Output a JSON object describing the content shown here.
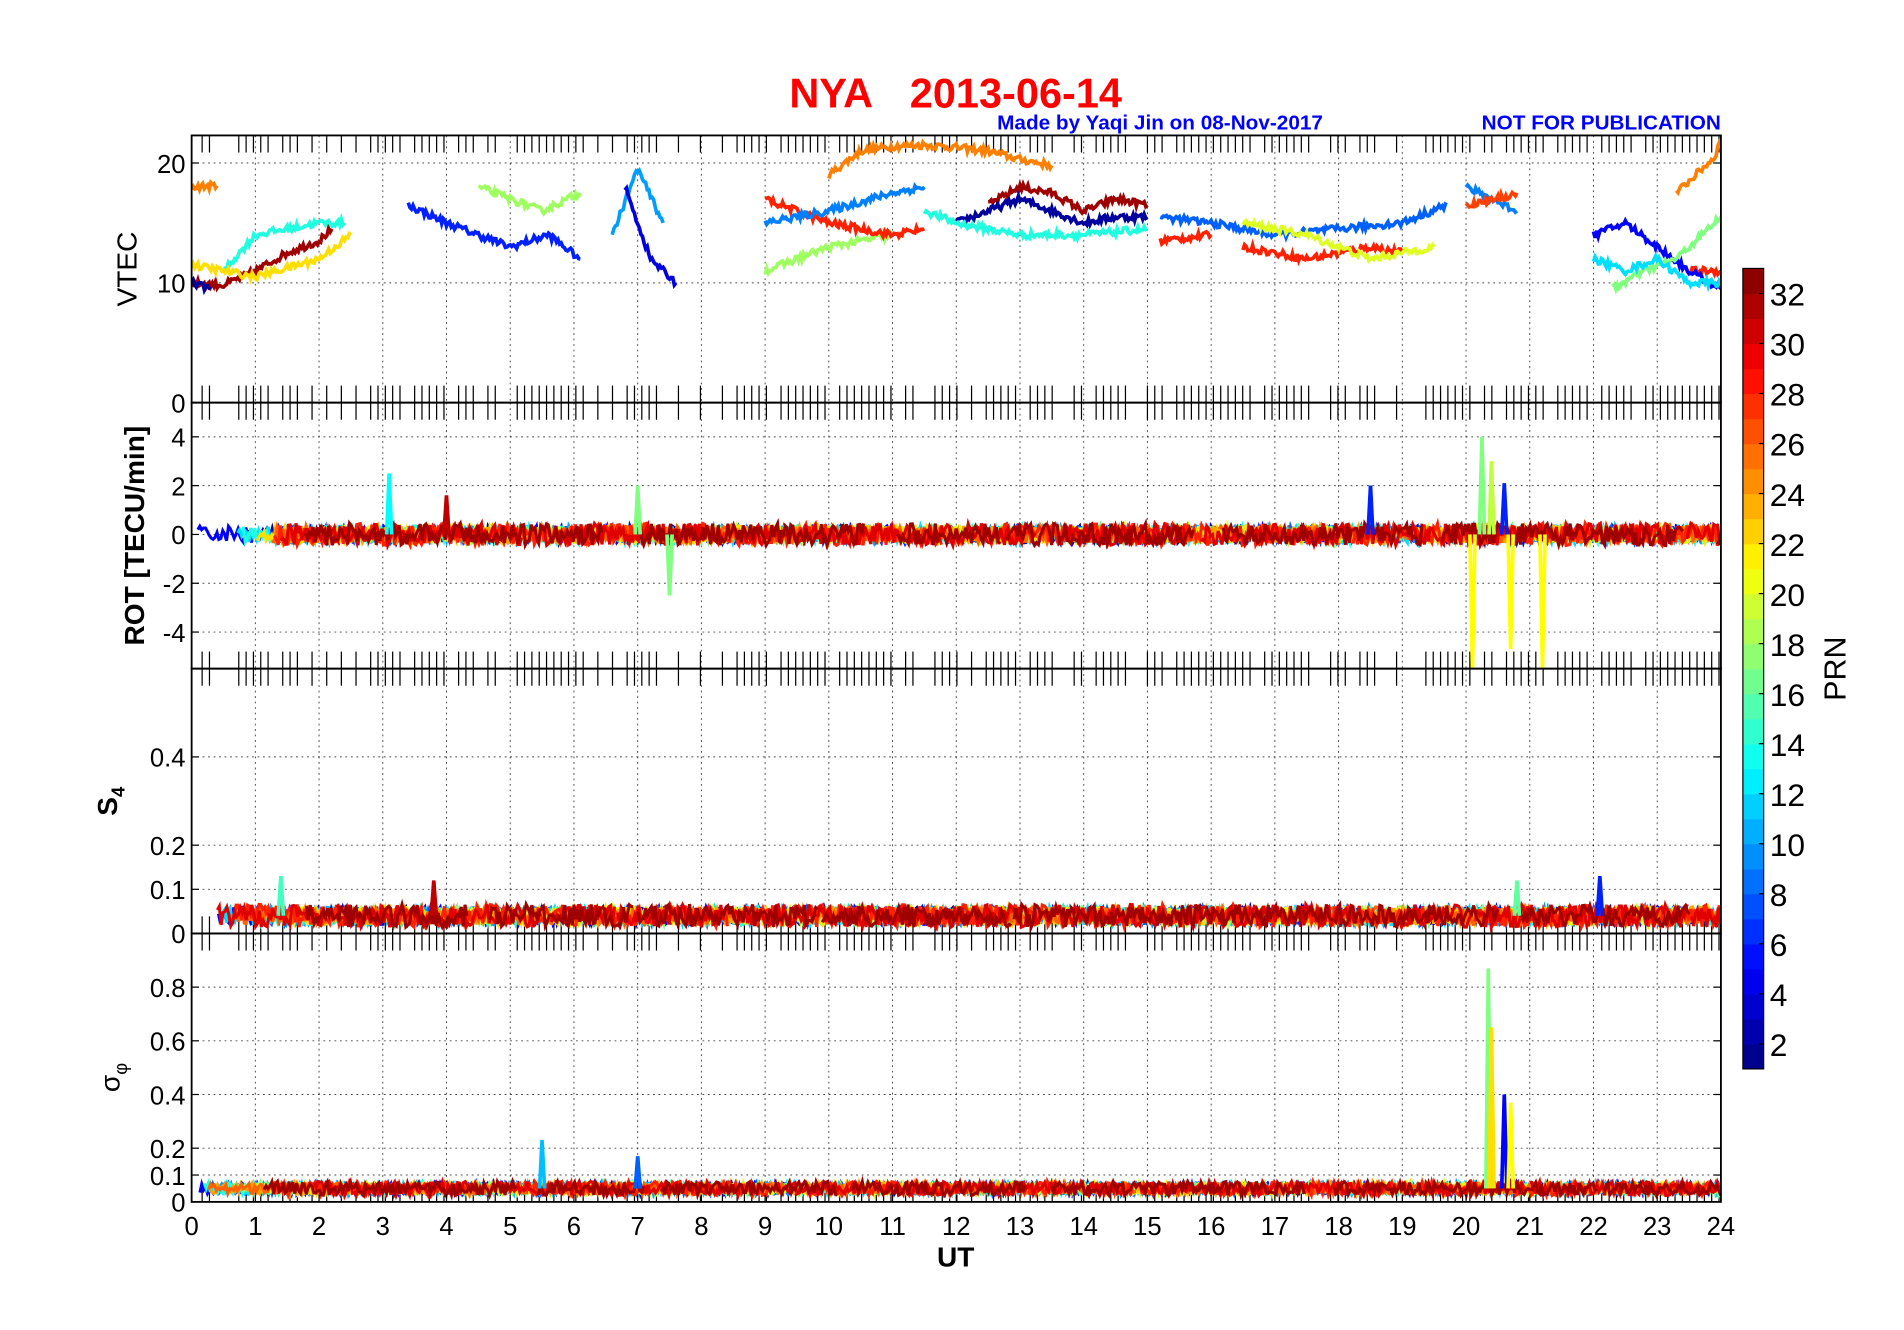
{
  "title": {
    "station": "NYA",
    "date": "2013-06-14"
  },
  "credit": "Made by Yaqi Jin on 08-Nov-2017",
  "notice": "NOT FOR PUBLICATION",
  "chart_data": {
    "type": "line",
    "xlabel": "UT",
    "xlim": [
      0,
      24
    ],
    "xticks": [
      0,
      1,
      2,
      3,
      4,
      5,
      6,
      7,
      8,
      9,
      10,
      11,
      12,
      13,
      14,
      15,
      16,
      17,
      18,
      19,
      20,
      21,
      22,
      23,
      24
    ],
    "grid": true,
    "colorbar": {
      "label": "PRN",
      "range": [
        1,
        33
      ],
      "ticks": [
        2,
        4,
        6,
        8,
        10,
        12,
        14,
        16,
        18,
        20,
        22,
        24,
        26,
        28,
        30,
        32
      ],
      "colormap": "jet",
      "placement": "right"
    },
    "panels": [
      {
        "id": "vtec",
        "ylabel": "VTEC",
        "ylim": [
          0,
          22.3
        ],
        "yticks": [
          0,
          10,
          20
        ],
        "tracks": [
          {
            "prn": 25,
            "t": [
              0,
              0.4
            ],
            "v": [
              18,
              18.1
            ]
          },
          {
            "prn": 25,
            "t": [
              10,
              10.5,
              11,
              11.5,
              12,
              12.5,
              13,
              13.5
            ],
            "v": [
              19,
              21,
              21.4,
              21.5,
              21.3,
              21,
              20.3,
              19.8
            ]
          },
          {
            "prn": 25,
            "t": [
              23.3,
              23.6,
              23.9,
              24
            ],
            "v": [
              17.5,
              19,
              20.5,
              22
            ]
          },
          {
            "prn": 32,
            "t": [
              0,
              0.5,
              1,
              1.5,
              2,
              2.2
            ],
            "v": [
              10,
              9.8,
              11,
              12.5,
              13.5,
              14.5
            ]
          },
          {
            "prn": 32,
            "t": [
              12.5,
              13,
              13.5,
              14,
              14.5,
              15
            ],
            "v": [
              16.5,
              18,
              17.5,
              16,
              17,
              16.5
            ]
          },
          {
            "prn": 2,
            "t": [
              0,
              0.3
            ],
            "v": [
              10,
              9.5
            ]
          },
          {
            "prn": 2,
            "t": [
              12,
              12.5,
              13,
              13.5,
              14,
              14.5,
              15
            ],
            "v": [
              15,
              16,
              17,
              16,
              15,
              15.5,
              15.5
            ]
          },
          {
            "prn": 6,
            "t": [
              3.4,
              4,
              5,
              5.6,
              6.1
            ],
            "v": [
              16.5,
              15,
              13,
              14,
              12
            ]
          },
          {
            "prn": 14,
            "t": [
              0.5,
              1,
              1.5,
              2,
              2.4
            ],
            "v": [
              11,
              14,
              14.5,
              15,
              15
            ]
          },
          {
            "prn": 14,
            "t": [
              11.5,
              12,
              13,
              14,
              15
            ],
            "v": [
              16,
              15,
              14,
              14,
              14.5
            ]
          },
          {
            "prn": 18,
            "t": [
              4.5,
              5,
              5.5,
              6.1
            ],
            "v": [
              18,
              17,
              16,
              17.5
            ]
          },
          {
            "prn": 18,
            "t": [
              9,
              10,
              11
            ],
            "v": [
              11,
              13,
              14
            ]
          },
          {
            "prn": 28,
            "t": [
              9,
              10,
              11,
              11.5
            ],
            "v": [
              17,
              15,
              14,
              14.5
            ]
          },
          {
            "prn": 28,
            "t": [
              15.2,
              16
            ],
            "v": [
              13.5,
              14
            ]
          },
          {
            "prn": 28,
            "t": [
              16.5,
              17.5,
              18.5,
              19
            ],
            "v": [
              13,
              12,
              13,
              12.5
            ]
          },
          {
            "prn": 28,
            "t": [
              23.5,
              24
            ],
            "v": [
              11,
              11
            ]
          },
          {
            "prn": 10,
            "t": [
              6.6,
              7,
              7.4
            ],
            "v": [
              14,
              19.5,
              15
            ]
          },
          {
            "prn": 4,
            "t": [
              6.8,
              7.2,
              7.6
            ],
            "v": [
              18,
              12,
              10
            ]
          },
          {
            "prn": 22,
            "t": [
              0,
              1,
              2,
              2.5
            ],
            "v": [
              11.5,
              10.5,
              12,
              14
            ]
          },
          {
            "prn": 9,
            "t": [
              9,
              10,
              11,
              11.5
            ],
            "v": [
              15,
              16,
              17.5,
              18
            ]
          },
          {
            "prn": 8,
            "t": [
              15.2,
              16,
              17,
              18,
              19,
              19.7
            ],
            "v": [
              15.5,
              15,
              14,
              14.5,
              15,
              16.5
            ]
          },
          {
            "prn": 20,
            "t": [
              16.5,
              17.5,
              18.5,
              19.5
            ],
            "v": [
              15,
              14,
              12,
              13
            ]
          },
          {
            "prn": 9,
            "t": [
              20,
              20.4,
              20.8
            ],
            "v": [
              18,
              17,
              16
            ]
          },
          {
            "prn": 27,
            "t": [
              20,
              20.5,
              20.8
            ],
            "v": [
              16.5,
              17,
              17.5
            ]
          },
          {
            "prn": 5,
            "t": [
              22,
              22.5,
              23,
              23.5,
              24
            ],
            "v": [
              14,
              15,
              13,
              11,
              9.5
            ]
          },
          {
            "prn": 17,
            "t": [
              22.3,
              22.8,
              23.3,
              24
            ],
            "v": [
              9.5,
              11,
              12,
              15.5
            ]
          },
          {
            "prn": 12,
            "t": [
              22,
              22.5,
              23,
              23.5,
              24
            ],
            "v": [
              12,
              11,
              12,
              10,
              10
            ]
          }
        ]
      },
      {
        "id": "rot",
        "ylabel": "ROT [TECU/min]",
        "ylim": [
          -5.5,
          5.4
        ],
        "yticks": [
          -4,
          -2,
          0,
          2,
          4
        ],
        "baseline": 0,
        "noise": 0.35,
        "spikes": [
          {
            "prn": 13,
            "t": 3.1,
            "v": 2.5
          },
          {
            "prn": 17,
            "t": 7.5,
            "v": -2.5
          },
          {
            "prn": 17,
            "t": 7.0,
            "v": 2.0
          },
          {
            "prn": 21,
            "t": 20.1,
            "v": -5.5
          },
          {
            "prn": 17,
            "t": 20.25,
            "v": 4.0
          },
          {
            "prn": 19,
            "t": 20.4,
            "v": 3.0
          },
          {
            "prn": 21,
            "t": 20.7,
            "v": -4.7
          },
          {
            "prn": 6,
            "t": 20.6,
            "v": 2.1
          },
          {
            "prn": 21,
            "t": 21.2,
            "v": -5.5
          },
          {
            "prn": 6,
            "t": 18.5,
            "v": 2.0
          },
          {
            "prn": 31,
            "t": 4.0,
            "v": 1.6
          }
        ]
      },
      {
        "id": "s4",
        "ylabel": "S4",
        "ylim": [
          0,
          0.6
        ],
        "yticks": [
          0,
          0.1,
          0.2,
          0.4
        ],
        "baseline": 0.04,
        "noise": 0.02,
        "spikes": [
          {
            "prn": 15,
            "t": 1.4,
            "v": 0.13
          },
          {
            "prn": 31,
            "t": 3.8,
            "v": 0.12
          },
          {
            "prn": 6,
            "t": 22.1,
            "v": 0.13
          },
          {
            "prn": 16,
            "t": 20.8,
            "v": 0.12
          }
        ]
      },
      {
        "id": "sigma-phi",
        "ylabel": "σφ",
        "ylim": [
          0,
          1.0
        ],
        "yticks": [
          0,
          0.1,
          0.2,
          0.4,
          0.6,
          0.8
        ],
        "baseline": 0.05,
        "noise": 0.02,
        "spikes": [
          {
            "prn": 11,
            "t": 5.5,
            "v": 0.23
          },
          {
            "prn": 17,
            "t": 20.35,
            "v": 0.87
          },
          {
            "prn": 22,
            "t": 20.4,
            "v": 0.65
          },
          {
            "prn": 5,
            "t": 20.6,
            "v": 0.4
          },
          {
            "prn": 21,
            "t": 20.7,
            "v": 0.37
          },
          {
            "prn": 8,
            "t": 7.0,
            "v": 0.17
          }
        ]
      }
    ]
  }
}
